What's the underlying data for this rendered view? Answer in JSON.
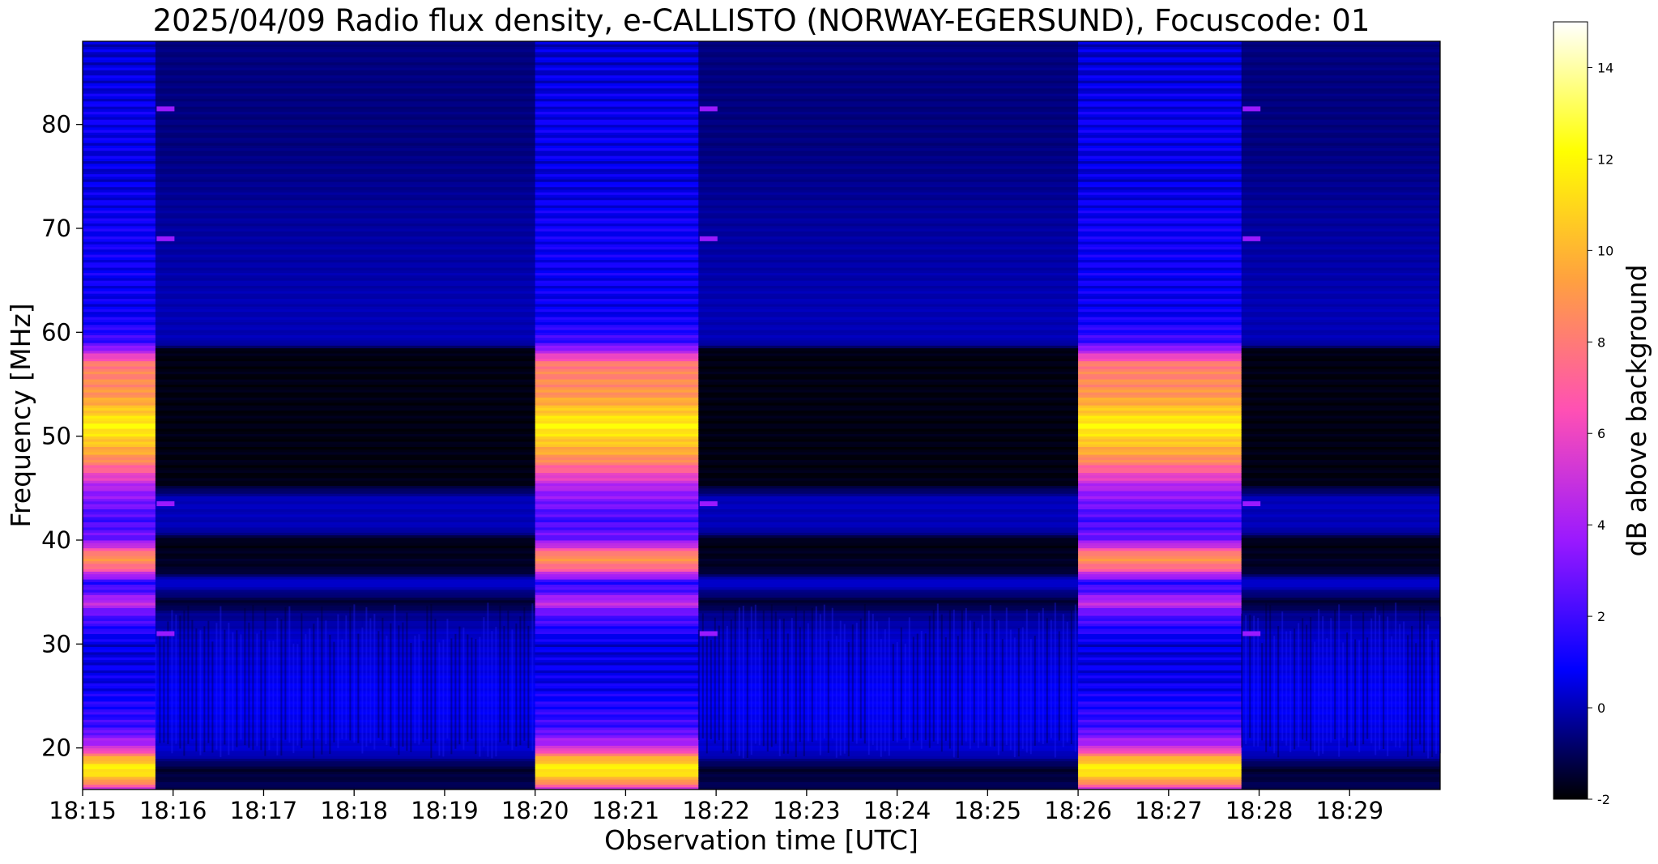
{
  "chart_data": {
    "type": "heatmap",
    "title": "2025/04/09  Radio flux density, e-CALLISTO (NORWAY-EGERSUND), Focuscode: 01",
    "xlabel": "Observation time [UTC]",
    "ylabel": "Frequency [MHz]",
    "x_ticks": [
      "18:15",
      "18:16",
      "18:17",
      "18:18",
      "18:19",
      "18:20",
      "18:21",
      "18:22",
      "18:23",
      "18:24",
      "18:25",
      "18:26",
      "18:27",
      "18:28",
      "18:29"
    ],
    "x_range": [
      "18:15:00",
      "18:30:00"
    ],
    "y_ticks": [
      20,
      30,
      40,
      50,
      60,
      70,
      80
    ],
    "ylim": [
      16,
      88
    ],
    "colorbar": {
      "label": "dB above background",
      "ticks": [
        -2,
        0,
        2,
        4,
        6,
        8,
        10,
        12,
        14
      ],
      "range": [
        -2,
        15
      ],
      "colormap": [
        "#000000",
        "#0000ff",
        "#9a19ff",
        "#ff50b4",
        "#ffa040",
        "#ffff00",
        "#ffffff"
      ]
    },
    "calibration_segments": [
      {
        "start": "18:15:00",
        "end": "18:15:48"
      },
      {
        "start": "18:20:00",
        "end": "18:21:48"
      },
      {
        "start": "18:26:00",
        "end": "18:27:48"
      }
    ],
    "gap_segments": [
      {
        "start": "18:15:48",
        "end": "18:20:00"
      },
      {
        "start": "18:21:48",
        "end": "18:26:00"
      },
      {
        "start": "18:27:48",
        "end": "18:30:00"
      }
    ],
    "calibration_profile_db": [
      {
        "mhz": 16,
        "db": 5
      },
      {
        "mhz": 17,
        "db": 10
      },
      {
        "mhz": 18,
        "db": 12
      },
      {
        "mhz": 19,
        "db": 10
      },
      {
        "mhz": 20,
        "db": 5
      },
      {
        "mhz": 22,
        "db": 2
      },
      {
        "mhz": 26,
        "db": 0.8
      },
      {
        "mhz": 30,
        "db": 0.5
      },
      {
        "mhz": 33,
        "db": 2.5
      },
      {
        "mhz": 34,
        "db": 5
      },
      {
        "mhz": 35,
        "db": 2.5
      },
      {
        "mhz": 36,
        "db": 1.5
      },
      {
        "mhz": 37.5,
        "db": 8
      },
      {
        "mhz": 38.5,
        "db": 9
      },
      {
        "mhz": 40,
        "db": 3
      },
      {
        "mhz": 42,
        "db": 2
      },
      {
        "mhz": 45,
        "db": 4
      },
      {
        "mhz": 48,
        "db": 9
      },
      {
        "mhz": 51,
        "db": 12
      },
      {
        "mhz": 54,
        "db": 9
      },
      {
        "mhz": 57,
        "db": 8
      },
      {
        "mhz": 59,
        "db": 2
      },
      {
        "mhz": 62,
        "db": 0.8
      },
      {
        "mhz": 70,
        "db": 1
      },
      {
        "mhz": 75,
        "db": 0.5
      },
      {
        "mhz": 80,
        "db": 0.8
      },
      {
        "mhz": 88,
        "db": 0.3
      }
    ],
    "background_profile_db": [
      {
        "mhz": 16,
        "db": -1
      },
      {
        "mhz": 18,
        "db": -1.5
      },
      {
        "mhz": 19.5,
        "db": 0.2
      },
      {
        "mhz": 22,
        "db": 0.6
      },
      {
        "mhz": 25,
        "db": 0.8
      },
      {
        "mhz": 30,
        "db": 0.3
      },
      {
        "mhz": 31,
        "db": 0.2
      },
      {
        "mhz": 33,
        "db": -0.5
      },
      {
        "mhz": 34,
        "db": -1.5
      },
      {
        "mhz": 36,
        "db": 0.5
      },
      {
        "mhz": 37,
        "db": -1.5
      },
      {
        "mhz": 40,
        "db": -1.8
      },
      {
        "mhz": 41,
        "db": 0
      },
      {
        "mhz": 44,
        "db": 0.1
      },
      {
        "mhz": 45.5,
        "db": -1.8
      },
      {
        "mhz": 58.3,
        "db": -1.8
      },
      {
        "mhz": 59,
        "db": 0
      },
      {
        "mhz": 62,
        "db": 0
      },
      {
        "mhz": 72,
        "db": -0.3
      },
      {
        "mhz": 78,
        "db": -0.6
      },
      {
        "mhz": 88,
        "db": -0.6
      }
    ],
    "marker_frequencies_mhz": [
      31,
      43.5,
      69,
      81.5
    ]
  }
}
